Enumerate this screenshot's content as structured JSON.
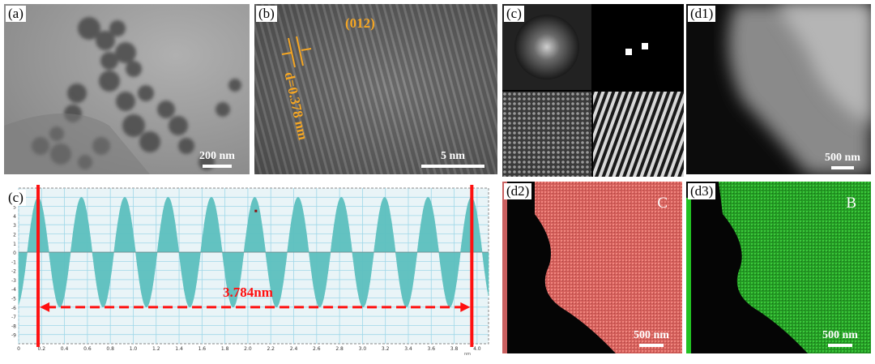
{
  "panels": {
    "a": {
      "label": "(a)",
      "scale": "200 nm"
    },
    "b": {
      "label": "(b)",
      "scale": "5 nm",
      "d_spacing": "d=0.378 nm",
      "plane": "(012)"
    },
    "c_fft": {
      "label": "(c)"
    },
    "c_profile": {
      "label": "(c)",
      "distance": "3.784nm",
      "y_ticks": [
        "6",
        "5",
        "4",
        "3",
        "2",
        "1",
        "0",
        "-1",
        "-2",
        "-3",
        "-4",
        "-5",
        "-6",
        "-7",
        "-8",
        "-9"
      ],
      "x_ticks": [
        "0",
        "0.2",
        "0.4",
        "0.6",
        "0.8",
        "1.0",
        "1.2",
        "1.4",
        "1.6",
        "1.8",
        "2.0",
        "2.2",
        "2.4",
        "2.6",
        "2.8",
        "3.0",
        "3.2",
        "3.4",
        "3.6",
        "3.8",
        "4.0"
      ],
      "x_unit": "nm"
    },
    "d1": {
      "label": "(d1)",
      "scale": "500 nm"
    },
    "d2": {
      "label": "(d2)",
      "scale": "500 nm",
      "element": "C"
    },
    "d3": {
      "label": "(d3)",
      "scale": "500 nm",
      "element": "B"
    }
  },
  "colors": {
    "wave": "#5cc0bf",
    "marker": "#ff1010",
    "annotation": "#f5a623",
    "carbon_map": "#e06a66",
    "boron_map": "#2fb52f"
  }
}
